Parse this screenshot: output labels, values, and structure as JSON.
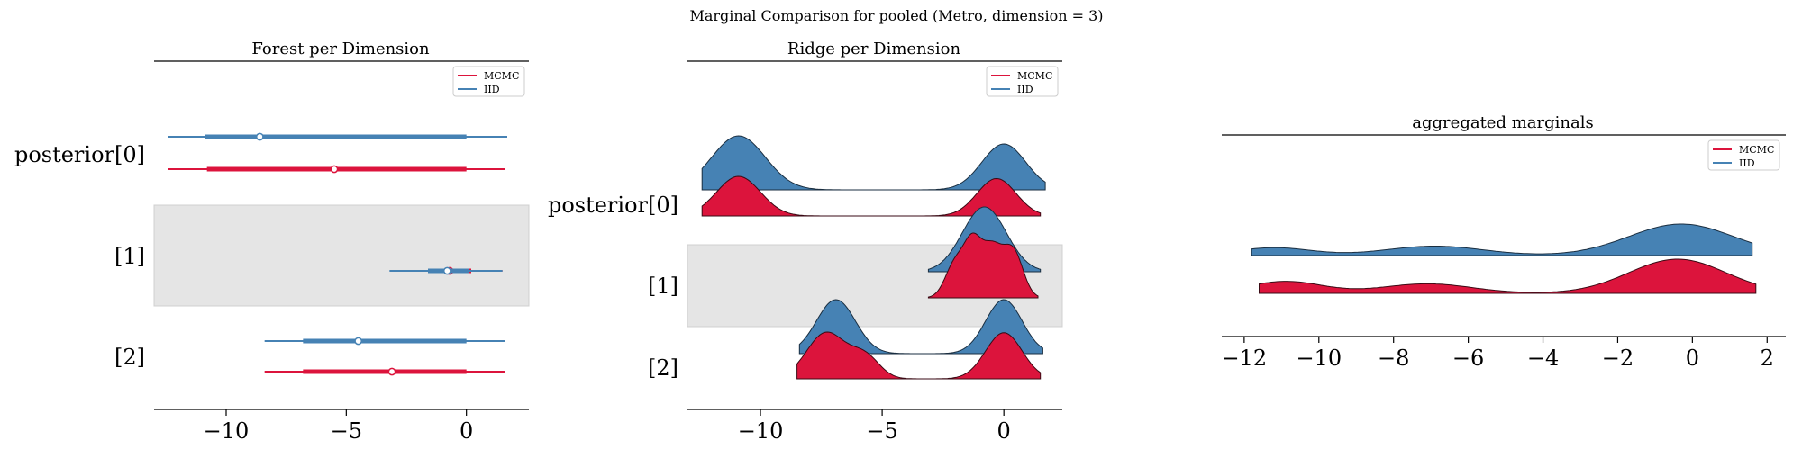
{
  "suptitle": "Marginal Comparison for pooled (Metro, dimension = 3)",
  "colors": {
    "mcmc": "#dc143c",
    "iid": "#4682b4",
    "band": "#e5e5e5"
  },
  "legend": {
    "mcmc": "MCMC",
    "iid": "IID"
  },
  "chart_data": [
    {
      "type": "forest",
      "title": "Forest per Dimension",
      "xlim": [
        -13,
        2.6
      ],
      "xticks": [
        -10,
        -5,
        0
      ],
      "xtick_labels": [
        "−10",
        "−5",
        "0"
      ],
      "ylabels": [
        "posterior[0]",
        "[1]",
        "[2]"
      ],
      "shaded_rows": [
        1
      ],
      "legend_position": "top-right",
      "series": [
        {
          "name": "MCMC",
          "rows": [
            {
              "low": -12.4,
              "q25": -10.8,
              "mean": -5.5,
              "q75": 0.0,
              "high": 1.6
            },
            {
              "low": -3.1,
              "q25": -1.5,
              "mean": -0.7,
              "q75": 0.2,
              "high": 1.5
            },
            {
              "low": -8.4,
              "q25": -6.8,
              "mean": -3.1,
              "q75": 0.0,
              "high": 1.6
            }
          ]
        },
        {
          "name": "IID",
          "rows": [
            {
              "low": -12.4,
              "q25": -10.9,
              "mean": -8.6,
              "q75": 0.0,
              "high": 1.7
            },
            {
              "low": -3.2,
              "q25": -1.6,
              "mean": -0.8,
              "q75": 0.1,
              "high": 1.5
            },
            {
              "low": -8.4,
              "q25": -6.8,
              "mean": -4.5,
              "q75": 0.0,
              "high": 1.6
            }
          ]
        }
      ]
    },
    {
      "type": "ridge",
      "title": "Ridge per Dimension",
      "xlim": [
        -13,
        2.4
      ],
      "xticks": [
        -10,
        -5,
        0
      ],
      "xtick_labels": [
        "−10",
        "−5",
        "0"
      ],
      "ylabels": [
        "posterior[0]",
        "[1]",
        "[2]"
      ],
      "shaded_rows": [
        1
      ],
      "legend_position": "top-right",
      "series": [
        {
          "name": "IID",
          "rows": [
            {
              "range": [
                -12.4,
                1.7
              ],
              "components": [
                [
                  -10.9,
                  1.1,
                  1.0
                ],
                [
                  0.0,
                  0.9,
                  0.85
                ]
              ]
            },
            {
              "range": [
                -3.1,
                1.5
              ],
              "components": [
                [
                  -0.8,
                  0.9,
                  1.0
                ]
              ]
            },
            {
              "range": [
                -8.4,
                1.6
              ],
              "components": [
                [
                  -6.9,
                  0.8,
                  0.7
                ],
                [
                  0.0,
                  0.75,
                  0.7
                ]
              ]
            }
          ]
        },
        {
          "name": "MCMC",
          "rows": [
            {
              "range": [
                -12.4,
                1.5
              ],
              "components": [
                [
                  -10.9,
                  0.9,
                  0.9
                ],
                [
                  -0.3,
                  0.8,
                  0.85
                ]
              ]
            },
            {
              "range": [
                -3.1,
                1.4
              ],
              "components": [
                [
                  -2.0,
                  0.4,
                  0.55
                ],
                [
                  -1.3,
                  0.35,
                  0.75
                ],
                [
                  -0.5,
                  0.45,
                  0.8
                ],
                [
                  0.4,
                  0.4,
                  0.7
                ]
              ]
            },
            {
              "range": [
                -8.5,
                1.5
              ],
              "components": [
                [
                  -7.3,
                  0.8,
                  0.75
                ],
                [
                  -5.7,
                  0.6,
                  0.35
                ],
                [
                  0.0,
                  0.75,
                  0.75
                ]
              ]
            }
          ]
        }
      ]
    },
    {
      "type": "ridge",
      "title": "aggregated marginals",
      "xlim": [
        -12.6,
        2.5
      ],
      "xticks": [
        -12,
        -10,
        -8,
        -6,
        -4,
        -2,
        0,
        2
      ],
      "xtick_labels": [
        "−12",
        "−10",
        "−8",
        "−6",
        "−4",
        "−2",
        "0",
        "2"
      ],
      "ylabels": [],
      "legend_position": "top-right",
      "series": [
        {
          "name": "IID",
          "rows": [
            {
              "range": [
                -11.8,
                1.6
              ],
              "components": [
                [
                  -11.2,
                  1.0,
                  0.25
                ],
                [
                  -6.9,
                  1.3,
                  0.3
                ],
                [
                  -0.3,
                  1.4,
                  1.0
                ]
              ]
            }
          ]
        },
        {
          "name": "MCMC",
          "rows": [
            {
              "range": [
                -11.6,
                1.7
              ],
              "components": [
                [
                  -10.9,
                  1.0,
                  0.35
                ],
                [
                  -7.1,
                  1.2,
                  0.28
                ],
                [
                  -0.4,
                  1.3,
                  1.0
                ]
              ]
            }
          ]
        }
      ]
    }
  ]
}
